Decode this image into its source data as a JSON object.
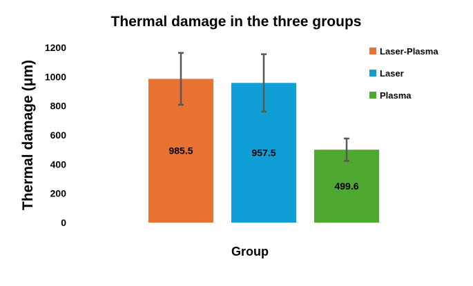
{
  "chart_data": {
    "type": "bar",
    "title": "Thermal damage in the three groups",
    "xlabel": "Group",
    "ylabel": "Thermal damage (μm)",
    "ylim": [
      0,
      1200
    ],
    "yticks": [
      "0",
      "200",
      "400",
      "600",
      "800",
      "1000",
      "1200"
    ],
    "grid": false,
    "legend_position": "right",
    "series": [
      {
        "name": "Laser-Plasma",
        "value": 985.5,
        "label": "985.5",
        "error": 178,
        "color": "#E97132"
      },
      {
        "name": "Laser",
        "value": 957.5,
        "label": "957.5",
        "error": 197,
        "color": "#0F9ED5"
      },
      {
        "name": "Plasma",
        "value": 499.6,
        "label": "499.6",
        "error": 77,
        "color": "#4EA72E"
      }
    ]
  }
}
